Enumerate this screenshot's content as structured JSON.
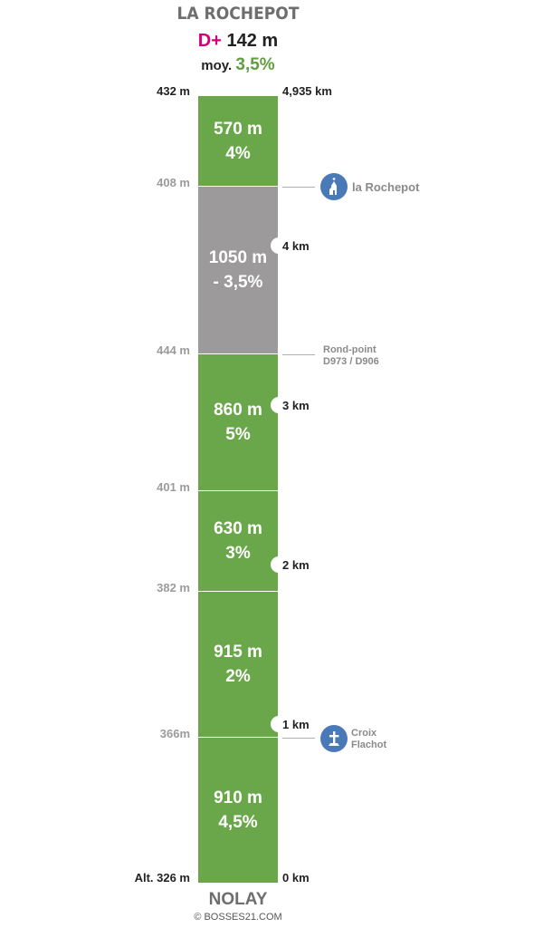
{
  "header": {
    "title": "LA ROCHEPOT",
    "dplus_prefix": "D+",
    "dplus_value": "142 m",
    "moy_prefix": "moy.",
    "moy_value": "3,5%"
  },
  "chart_data": {
    "type": "gradient-profile",
    "total_distance_km": "4,935 km",
    "segments": [
      {
        "length": "570 m",
        "grade": "4%",
        "color": "#6aa64a"
      },
      {
        "length": "1050 m",
        "grade": "- 3,5%",
        "color": "#9c9a9b"
      },
      {
        "length": "860 m",
        "grade": "5%",
        "color": "#6aa64a"
      },
      {
        "length": "630 m",
        "grade": "3%",
        "color": "#6aa64a"
      },
      {
        "length": "915 m",
        "grade": "2%",
        "color": "#6aa64a"
      },
      {
        "length": "910 m",
        "grade": "4,5%",
        "color": "#6aa64a"
      }
    ],
    "altitudes": [
      "432 m",
      "408 m",
      "444 m",
      "401 m",
      "382 m",
      "366m",
      "Alt. 326 m"
    ],
    "km_markers": [
      "4,935 km",
      "4 km",
      "3 km",
      "2 km",
      "1 km",
      "0 km"
    ],
    "points_of_interest": [
      {
        "name": "la Rochepot",
        "icon": "church-icon"
      },
      {
        "name_lines": [
          "Rond-point",
          "D973 / D906"
        ],
        "icon": ""
      },
      {
        "name_lines": [
          "Croix",
          "Flachot"
        ],
        "icon": "cross-icon"
      }
    ]
  },
  "footer": {
    "start_name": "NOLAY",
    "copyright": "© BOSSES21.COM"
  }
}
